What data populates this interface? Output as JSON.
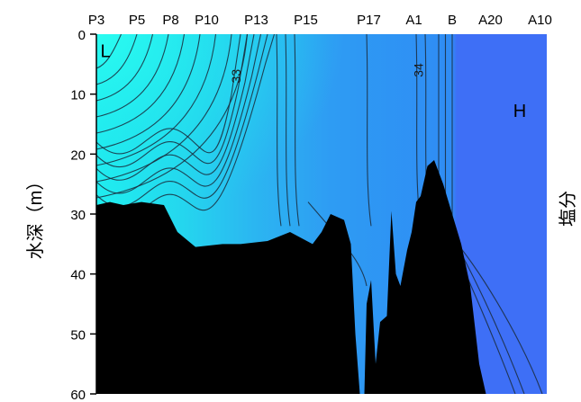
{
  "chart_data": {
    "type": "heatmap",
    "variable_label": "塩分",
    "ylabel": "水深（m）",
    "ylim": [
      0,
      60
    ],
    "y_ticks": [
      0,
      10,
      20,
      30,
      40,
      50,
      60
    ],
    "stations": [
      "P3",
      "P5",
      "P8",
      "P10",
      "P13",
      "P15",
      "P17",
      "A1",
      "B",
      "A20",
      "A10"
    ],
    "contour_labels": [
      {
        "value": "33",
        "x_fraction": 0.32,
        "depth": 7
      },
      {
        "value": "34",
        "x_fraction": 0.725,
        "depth": 6
      }
    ],
    "region_labels": [
      {
        "text": "L",
        "x_fraction": 0.02,
        "depth": 2
      },
      {
        "text": "H",
        "x_fraction": 0.94,
        "depth": 12
      }
    ],
    "bottom_profile": {
      "x_fraction": [
        0.0,
        0.03,
        0.06,
        0.1,
        0.15,
        0.18,
        0.22,
        0.28,
        0.32,
        0.38,
        0.43,
        0.48,
        0.5,
        0.52,
        0.55,
        0.565,
        0.575,
        0.585,
        0.595,
        0.6,
        0.61,
        0.62,
        0.63,
        0.645,
        0.655,
        0.665,
        0.675,
        0.69,
        0.7,
        0.71,
        0.72,
        0.735,
        0.75,
        0.77,
        0.79,
        0.81,
        0.83,
        0.85,
        0.865
      ],
      "depth": [
        28.5,
        28,
        28.5,
        28,
        28.5,
        33,
        35.5,
        35,
        35,
        34.5,
        33,
        35,
        33,
        30,
        31,
        35,
        50,
        60,
        60,
        45,
        41,
        55,
        48,
        47,
        29.5,
        40,
        42,
        36,
        33,
        28,
        27,
        22,
        21,
        25,
        30,
        35,
        42,
        55,
        60
      ]
    },
    "colors": {
      "low": "#1ef5f0",
      "mid": "#22a6f5",
      "high": "#3e6ff6",
      "contour": "#1a2b3c",
      "bottom": "#000000"
    }
  }
}
